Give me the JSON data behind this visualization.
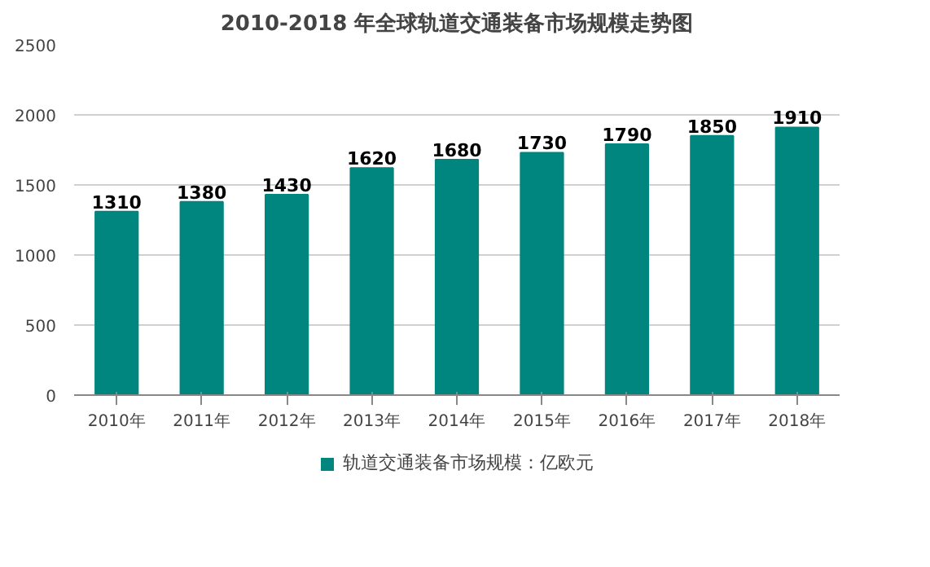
{
  "chart_data": {
    "type": "bar",
    "title": "2010-2018 年全球轨道交通装备市场规模走势图",
    "categories": [
      "2010年",
      "2011年",
      "2012年",
      "2013年",
      "2014年",
      "2015年",
      "2016年",
      "2017年",
      "2018年"
    ],
    "series": [
      {
        "name": "轨道交通装备市场规模：亿欧元",
        "color": "#00857f",
        "values": [
          1310,
          1380,
          1430,
          1620,
          1680,
          1730,
          1790,
          1850,
          1910
        ]
      }
    ],
    "ylim": [
      0,
      2500
    ],
    "yticks": [
      0,
      500,
      1000,
      1500,
      2000,
      2500
    ],
    "grid": "y",
    "legend": "bottom",
    "data_labels": true
  }
}
